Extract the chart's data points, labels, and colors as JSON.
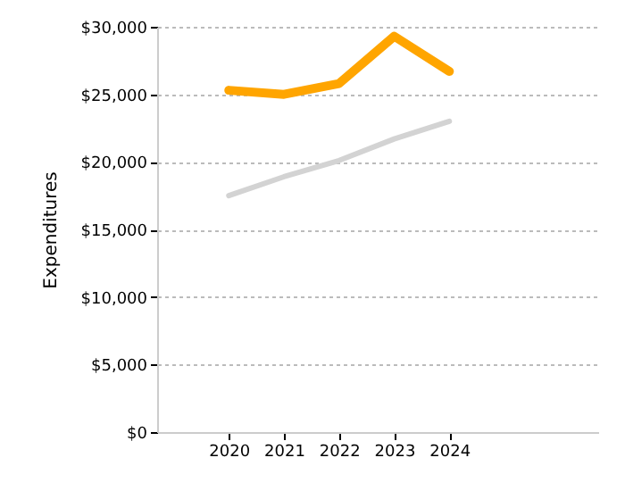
{
  "chart_data": {
    "type": "line",
    "ylabel": "Expenditures",
    "x": [
      2020,
      2021,
      2022,
      2023,
      2024
    ],
    "series": [
      {
        "color": "#d3d3d3",
        "values": [
          17500,
          18900,
          20100,
          21700,
          23000
        ]
      },
      {
        "color": "#ffa500",
        "values": [
          25300,
          25000,
          25800,
          29300,
          26700
        ]
      }
    ],
    "xlim": [
      2018.7,
      2026.7
    ],
    "xticks": [
      2020,
      2021,
      2022,
      2023,
      2024
    ],
    "ylim": [
      0,
      30000
    ],
    "yticks": [
      {
        "value": 0,
        "label": "$0"
      },
      {
        "value": 5000,
        "label": "$5,000"
      },
      {
        "value": 10000,
        "label": "$10,000"
      },
      {
        "value": 15000,
        "label": "$15,000"
      },
      {
        "value": 20000,
        "label": "$20,000"
      },
      {
        "value": 25000,
        "label": "$25,000"
      },
      {
        "value": 30000,
        "label": "$30,000"
      }
    ],
    "grid": "y",
    "marker": "none",
    "line_style": "solid"
  }
}
